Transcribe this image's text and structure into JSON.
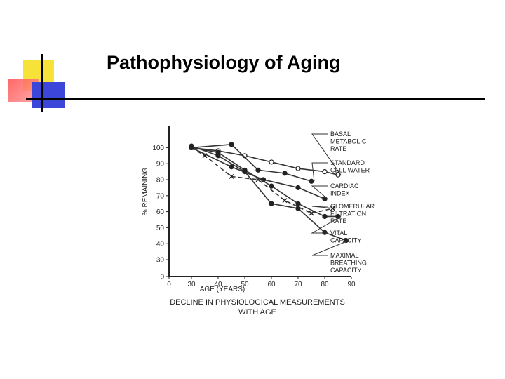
{
  "slide": {
    "title": "Pathophysiology of Aging"
  },
  "chart_data": {
    "type": "line",
    "title": "",
    "caption": [
      "DECLINE IN PHYSIOLOGICAL MEASUREMENTS",
      "WITH AGE"
    ],
    "xlabel": "AGE (YEARS)",
    "ylabel": "% REMAINING",
    "xlim": [
      0,
      90
    ],
    "ylim": [
      0,
      100
    ],
    "x_ticks": [
      "0",
      "30",
      "40",
      "50",
      "60",
      "70",
      "80",
      "90"
    ],
    "y_ticks": [
      "0",
      "30",
      "40",
      "50",
      "60",
      "70",
      "80",
      "90",
      "100"
    ],
    "grid": false,
    "series": [
      {
        "name": "BASAL METABOLIC RATE",
        "label_lines": [
          "BASAL",
          "METABOLIC",
          "RATE"
        ],
        "marker": "open-circle",
        "dashed": false,
        "x": [
          30,
          40,
          50,
          60,
          70,
          80,
          85
        ],
        "y": [
          100,
          98,
          95,
          91,
          87,
          85,
          83
        ]
      },
      {
        "name": "STANDARD CELL WATER",
        "label_lines": [
          "STANDARD",
          "CELL WATER"
        ],
        "marker": "filled-circle",
        "dashed": false,
        "x": [
          30,
          45,
          55,
          65,
          75
        ],
        "y": [
          100,
          102,
          86,
          84,
          79
        ]
      },
      {
        "name": "CARDIAC INDEX",
        "label_lines": [
          "CARDIAC",
          "INDEX"
        ],
        "marker": "filled-circle",
        "dashed": false,
        "x": [
          30,
          45,
          57,
          70,
          80
        ],
        "y": [
          100,
          88,
          80,
          75,
          68
        ]
      },
      {
        "name": "GLOMERULAR FILTRATION RATE",
        "label_lines": [
          "GLOMERULAR",
          "FILTRATION",
          "RATE"
        ],
        "marker": "x",
        "dashed": true,
        "x": [
          30,
          35,
          45,
          55,
          65,
          75,
          83
        ],
        "y": [
          100,
          95,
          82,
          80,
          67,
          59,
          62
        ]
      },
      {
        "name": "VITAL CAPACITY",
        "label_lines": [
          "VITAL",
          "CAPACITY"
        ],
        "marker": "filled-circle",
        "dashed": false,
        "x": [
          30,
          40,
          50,
          60,
          70,
          80,
          85
        ],
        "y": [
          100,
          97,
          86,
          76,
          65,
          57,
          57
        ]
      },
      {
        "name": "MAXIMAL BREATHING CAPACITY",
        "label_lines": [
          "MAXIMAL",
          "BREATHING",
          "CAPACITY"
        ],
        "marker": "filled-circle",
        "dashed": false,
        "x": [
          30,
          40,
          50,
          60,
          70,
          80,
          88
        ],
        "y": [
          101,
          95,
          85,
          65,
          62,
          47,
          42
        ]
      }
    ]
  }
}
